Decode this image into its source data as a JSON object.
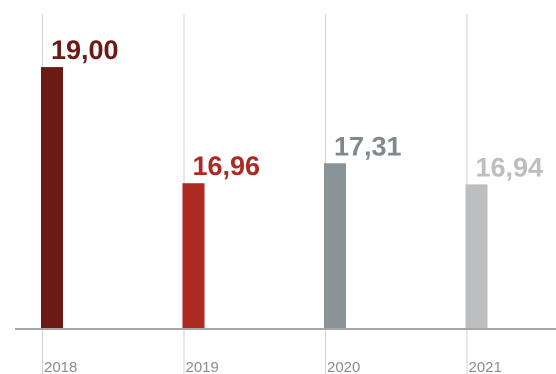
{
  "chart_data": {
    "type": "bar",
    "categories": [
      "2018",
      "2019",
      "2020",
      "2021"
    ],
    "values": [
      19.0,
      16.96,
      17.31,
      16.94
    ],
    "value_labels": [
      "19,00",
      "16,96",
      "17,31",
      "16,94"
    ],
    "bar_colors": [
      "#6b1a16",
      "#ad2a22",
      "#8a9396",
      "#bdbec0"
    ],
    "label_colors": [
      "#6b1a16",
      "#ad2a22",
      "#80898d",
      "#bdbec0"
    ],
    "title": "",
    "xlabel": "",
    "ylabel": "",
    "ylim": [
      14.4,
      19.3
    ],
    "grid": "vertical lines at categories",
    "legend": "none"
  }
}
